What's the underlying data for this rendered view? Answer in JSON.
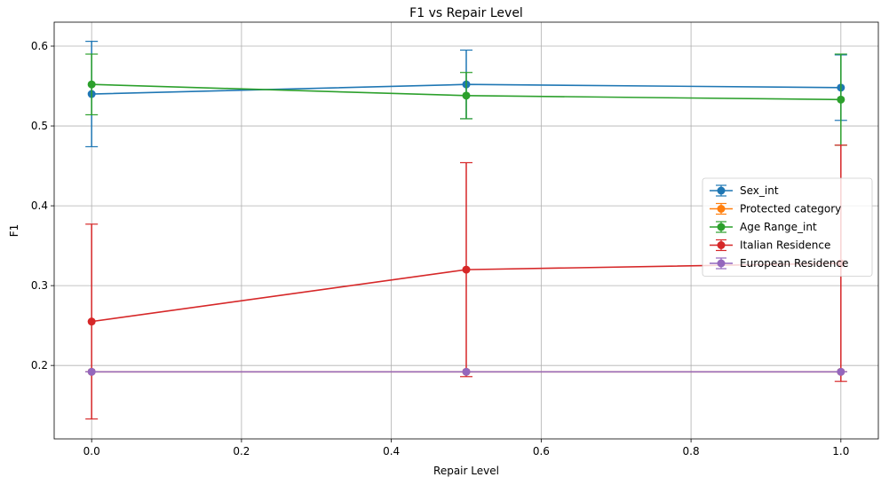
{
  "chart_data": {
    "type": "line",
    "title": "F1 vs Repair Level",
    "xlabel": "Repair Level",
    "ylabel": "F1",
    "xlim": [
      -0.05,
      1.05
    ],
    "ylim": [
      0.108,
      0.63
    ],
    "xticks": [
      0.0,
      0.2,
      0.4,
      0.6,
      0.8,
      1.0
    ],
    "xtick_labels": [
      "0.0",
      "0.2",
      "0.4",
      "0.6",
      "0.8",
      "1.0"
    ],
    "yticks": [
      0.2,
      0.3,
      0.4,
      0.5,
      0.6
    ],
    "ytick_labels": [
      "0.2",
      "0.3",
      "0.4",
      "0.5",
      "0.6"
    ],
    "grid": true,
    "legend_position": "center-right",
    "x": [
      0.0,
      0.5,
      1.0
    ],
    "series": [
      {
        "name": "Sex_int",
        "color": "#1f77b4",
        "values": [
          0.54,
          0.552,
          0.548
        ],
        "err_low": [
          0.474,
          0.509,
          0.507
        ],
        "err_high": [
          0.606,
          0.595,
          0.589
        ]
      },
      {
        "name": "Protected category",
        "color": "#ff7f0e",
        "values": [
          0.192,
          0.192,
          0.192
        ],
        "err_low": [
          0.192,
          0.192,
          0.192
        ],
        "err_high": [
          0.192,
          0.192,
          0.192
        ]
      },
      {
        "name": "Age Range_int",
        "color": "#2ca02c",
        "values": [
          0.552,
          0.538,
          0.533
        ],
        "err_low": [
          0.514,
          0.509,
          0.476
        ],
        "err_high": [
          0.59,
          0.567,
          0.59
        ]
      },
      {
        "name": "Italian Residence",
        "color": "#d62728",
        "values": [
          0.255,
          0.32,
          0.328
        ],
        "err_low": [
          0.133,
          0.186,
          0.18
        ],
        "err_high": [
          0.377,
          0.454,
          0.476
        ]
      },
      {
        "name": "European Residence",
        "color": "#9467bd",
        "values": [
          0.192,
          0.192,
          0.192
        ],
        "err_low": [
          0.192,
          0.192,
          0.192
        ],
        "err_high": [
          0.192,
          0.192,
          0.192
        ]
      }
    ]
  }
}
